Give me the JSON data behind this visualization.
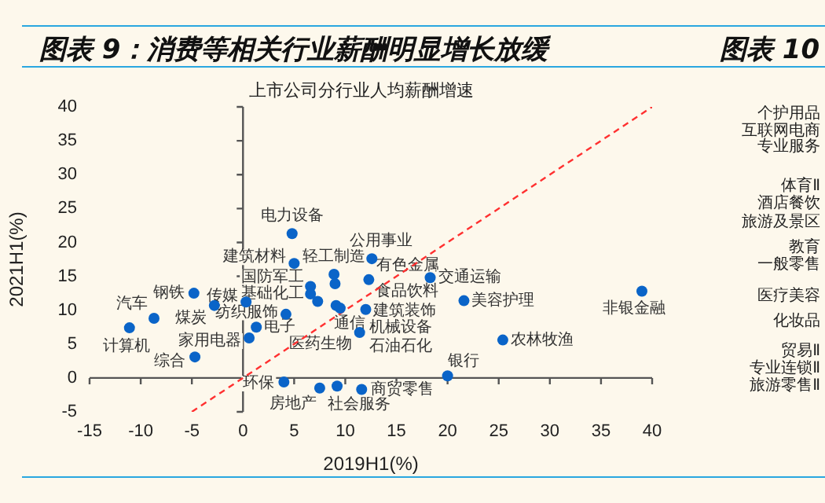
{
  "chart_data": [
    {
      "type": "scatter",
      "title": "图表 9：消费等相关行业薪酬明显增长放缓",
      "subtitle": "上市公司分行业人均薪酬增速",
      "xlabel": "2019H1(%)",
      "ylabel": "2021H1(%)",
      "xlim": [
        -15,
        40
      ],
      "xticks": [
        -15,
        -10,
        -5,
        0,
        5,
        10,
        15,
        20,
        25,
        30,
        35,
        40
      ],
      "ylim": [
        -5,
        40
      ],
      "yticks": [
        -5,
        0,
        5,
        10,
        15,
        20,
        25,
        30,
        35,
        40
      ],
      "series": [
        {
          "color": "#0a64c8",
          "x": [
            -11.1,
            -8.7,
            -4.8,
            -2.8,
            -4.7,
            0.3,
            1.3,
            0.6,
            4.0,
            7.5,
            9.2,
            11.6,
            4.8,
            5.0,
            8.9,
            12.6,
            12.3,
            18.3,
            6.6,
            6.6,
            9.0,
            7.3,
            4.2,
            9.1,
            9.5,
            12.0,
            11.4,
            20.0,
            21.6,
            25.4,
            39.0
          ],
          "values": [
            7.4,
            8.8,
            12.5,
            10.7,
            3.1,
            11.2,
            7.5,
            5.9,
            -0.6,
            -1.5,
            -1.2,
            -1.7,
            21.3,
            16.9,
            15.3,
            17.6,
            14.5,
            14.8,
            13.5,
            12.4,
            13.9,
            11.3,
            9.4,
            10.7,
            10.3,
            10.1,
            6.7,
            0.3,
            11.4,
            5.6,
            12.8
          ]
        },
        {
          "type": "line",
          "color": "#ff3030",
          "line_style": "dashed",
          "marker": "none",
          "x": [
            -5,
            40
          ],
          "values": [
            -5,
            40
          ]
        }
      ],
      "annotations": [
        {
          "text": "计算机",
          "x": -11.1,
          "y": 7.4
        },
        {
          "text": "汽车",
          "x": -8.7,
          "y": 8.8
        },
        {
          "text": "钢铁",
          "x": -4.8,
          "y": 12.5
        },
        {
          "text": "煤炭",
          "x": -2.8,
          "y": 10.7
        },
        {
          "text": "综合",
          "x": -4.7,
          "y": 3.1
        },
        {
          "text": "传媒",
          "x": 0.3,
          "y": 11.2
        },
        {
          "text": "电子",
          "x": 1.3,
          "y": 7.5
        },
        {
          "text": "家用电器",
          "x": 0.6,
          "y": 5.9
        },
        {
          "text": "环保",
          "x": 4.0,
          "y": -0.6
        },
        {
          "text": "房地产",
          "x": 7.5,
          "y": -1.5
        },
        {
          "text": "社会服务",
          "x": 9.2,
          "y": -1.2
        },
        {
          "text": "商贸零售",
          "x": 11.6,
          "y": -1.7
        },
        {
          "text": "电力设备",
          "x": 4.8,
          "y": 21.3
        },
        {
          "text": "建筑材料",
          "x": 5.0,
          "y": 16.9
        },
        {
          "text": "轻工制造",
          "x": 8.9,
          "y": 15.3
        },
        {
          "text": "公用事业",
          "x": 12.6,
          "y": 17.6
        },
        {
          "text": "有色金属",
          "x": 12.3,
          "y": 14.5
        },
        {
          "text": "交通运输",
          "x": 18.3,
          "y": 14.8
        },
        {
          "text": "国防军工",
          "x": 6.6,
          "y": 13.5
        },
        {
          "text": "基础化工",
          "x": 6.6,
          "y": 12.4
        },
        {
          "text": "食品饮料",
          "x": 9.0,
          "y": 13.9
        },
        {
          "text": "纺织服饰",
          "x": 7.3,
          "y": 11.3
        },
        {
          "text": "医药生物",
          "x": 4.2,
          "y": 9.4
        },
        {
          "text": "机械设备",
          "x": 9.1,
          "y": 10.7
        },
        {
          "text": "通信",
          "x": 9.5,
          "y": 10.3
        },
        {
          "text": "建筑装饰",
          "x": 12.0,
          "y": 10.1
        },
        {
          "text": "石油石化",
          "x": 11.4,
          "y": 6.7
        },
        {
          "text": "银行",
          "x": 20.0,
          "y": 0.3
        },
        {
          "text": "美容护理",
          "x": 21.6,
          "y": 11.4
        },
        {
          "text": "农林牧渔",
          "x": 25.4,
          "y": 5.6
        },
        {
          "text": "非银金融",
          "x": 39.0,
          "y": 12.8
        }
      ]
    },
    {
      "type": "other",
      "title": "图表 10",
      "annotations": [
        "个护用品",
        "互联网电商",
        "专业服务",
        "体育Ⅱ",
        "酒店餐饮",
        "旅游及景区",
        "教育",
        "一般零售",
        "医疗美容",
        "化妆品",
        "贸易Ⅱ",
        "专业连锁Ⅱ",
        "旅游零售Ⅱ"
      ]
    }
  ]
}
